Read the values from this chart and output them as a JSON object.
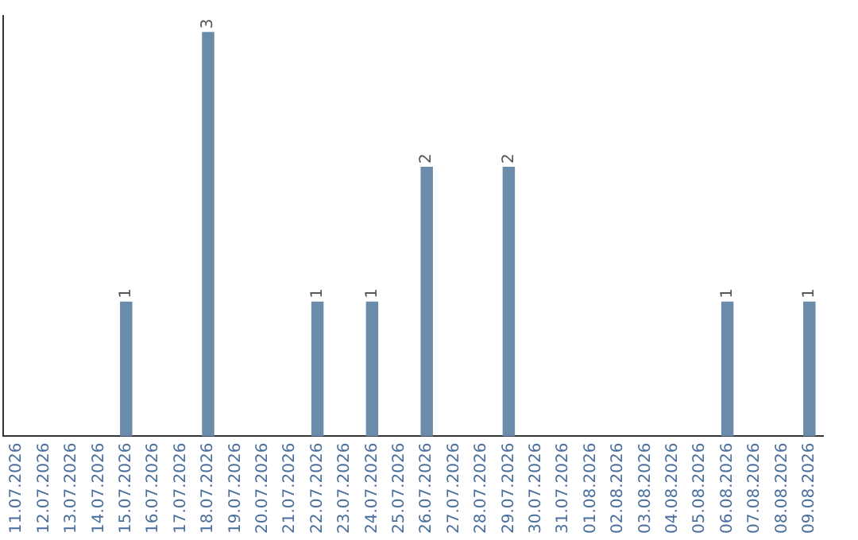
{
  "chart_data": {
    "type": "bar",
    "categories": [
      "11.07.2026",
      "12.07.2026",
      "13.07.2026",
      "14.07.2026",
      "15.07.2026",
      "16.07.2026",
      "17.07.2026",
      "18.07.2026",
      "19.07.2026",
      "20.07.2026",
      "21.07.2026",
      "22.07.2026",
      "23.07.2026",
      "24.07.2026",
      "25.07.2026",
      "26.07.2026",
      "27.07.2026",
      "28.07.2026",
      "29.07.2026",
      "30.07.2026",
      "31.07.2026",
      "01.08.2026",
      "02.08.2026",
      "03.08.2026",
      "04.08.2026",
      "05.08.2026",
      "06.08.2026",
      "07.08.2026",
      "08.08.2026",
      "09.08.2026"
    ],
    "values": [
      0,
      0,
      0,
      0,
      1,
      0,
      0,
      3,
      0,
      0,
      0,
      1,
      0,
      1,
      0,
      2,
      0,
      0,
      2,
      0,
      0,
      0,
      0,
      0,
      0,
      0,
      1,
      0,
      0,
      1
    ],
    "value_labels": [
      null,
      null,
      null,
      null,
      "1",
      null,
      null,
      "3",
      null,
      null,
      null,
      "1",
      null,
      "1",
      null,
      "2",
      null,
      null,
      "2",
      null,
      null,
      null,
      null,
      null,
      null,
      null,
      "1",
      null,
      null,
      "1"
    ],
    "color": "#6a8caa",
    "ylim": [
      0,
      3.12
    ],
    "grid": false,
    "legend": false,
    "tick_labels": "x"
  }
}
